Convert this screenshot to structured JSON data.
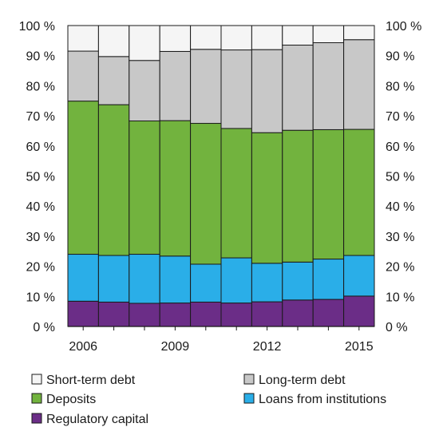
{
  "chart_data": {
    "type": "bar",
    "stacked": true,
    "percent": true,
    "x": [
      "2006",
      "2007",
      "2008",
      "2009",
      "2010",
      "2011",
      "2012",
      "2013",
      "2014",
      "2015"
    ],
    "x_tick_labels": [
      "2006",
      "2009",
      "2012",
      "2015"
    ],
    "y_tick_labels": [
      "0 %",
      "10 %",
      "20 %",
      "30 %",
      "40 %",
      "50 %",
      "60 %",
      "70 %",
      "80 %",
      "90 %",
      "100 %"
    ],
    "ylim": [
      0,
      100
    ],
    "grid": false,
    "legend_position": "bottom",
    "series": [
      {
        "name": "Regulatory capital",
        "color": "#6b2d87",
        "values": [
          8.4,
          8.1,
          7.7,
          7.8,
          8.1,
          7.8,
          8.2,
          8.8,
          9.0,
          10.1
        ]
      },
      {
        "name": "Loans from institutions",
        "color": "#2aaee8",
        "values": [
          15.6,
          15.5,
          16.3,
          15.6,
          12.6,
          15.0,
          12.8,
          12.6,
          13.4,
          13.5
        ]
      },
      {
        "name": "Deposits",
        "color": "#72b33e",
        "values": [
          50.9,
          50.1,
          44.3,
          45.0,
          46.8,
          43.0,
          43.4,
          43.8,
          43.0,
          41.9
        ]
      },
      {
        "name": "Long-term debt",
        "color": "#c8c8c8",
        "values": [
          16.6,
          16.0,
          20.1,
          23.0,
          24.6,
          26.1,
          27.6,
          28.3,
          28.9,
          29.8
        ]
      },
      {
        "name": "Short-term debt",
        "color": "#f5f5f5",
        "values": [
          8.5,
          10.3,
          11.6,
          8.6,
          7.9,
          8.1,
          8.0,
          6.5,
          5.7,
          4.7
        ]
      }
    ],
    "legend_order": [
      "Short-term debt",
      "Long-term debt",
      "Deposits",
      "Loans from institutions",
      "Regulatory capital"
    ]
  }
}
